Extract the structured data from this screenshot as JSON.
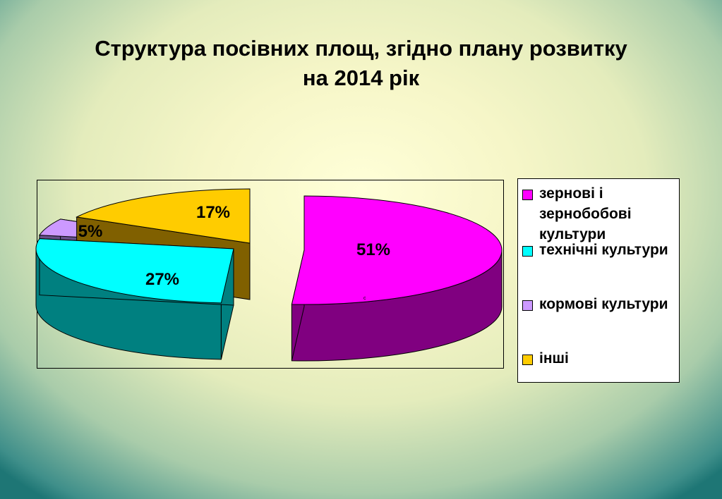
{
  "title_line1": "Структура посівних площ, згідно плану розвитку",
  "title_line2": "на 2014 рік",
  "chart_data": {
    "type": "pie",
    "title": "Структура посівних площ, згідно плану розвитку на 2014 рік",
    "legend_position": "right",
    "slices": [
      {
        "label": "зернові і зернобобові культури",
        "value": 51,
        "display": "51%",
        "color": "#ff00ff",
        "side_color": "#800080"
      },
      {
        "label": "технічні культури",
        "value": 27,
        "display": "27%",
        "color": "#00ffff",
        "side_color": "#008080"
      },
      {
        "label": "кормові культури",
        "value": 5,
        "display": "5%",
        "color": "#cc99ff",
        "side_color": "#66508a"
      },
      {
        "label": "інші",
        "value": 17,
        "display": "17%",
        "color": "#ffcc00",
        "side_color": "#806000"
      }
    ]
  }
}
